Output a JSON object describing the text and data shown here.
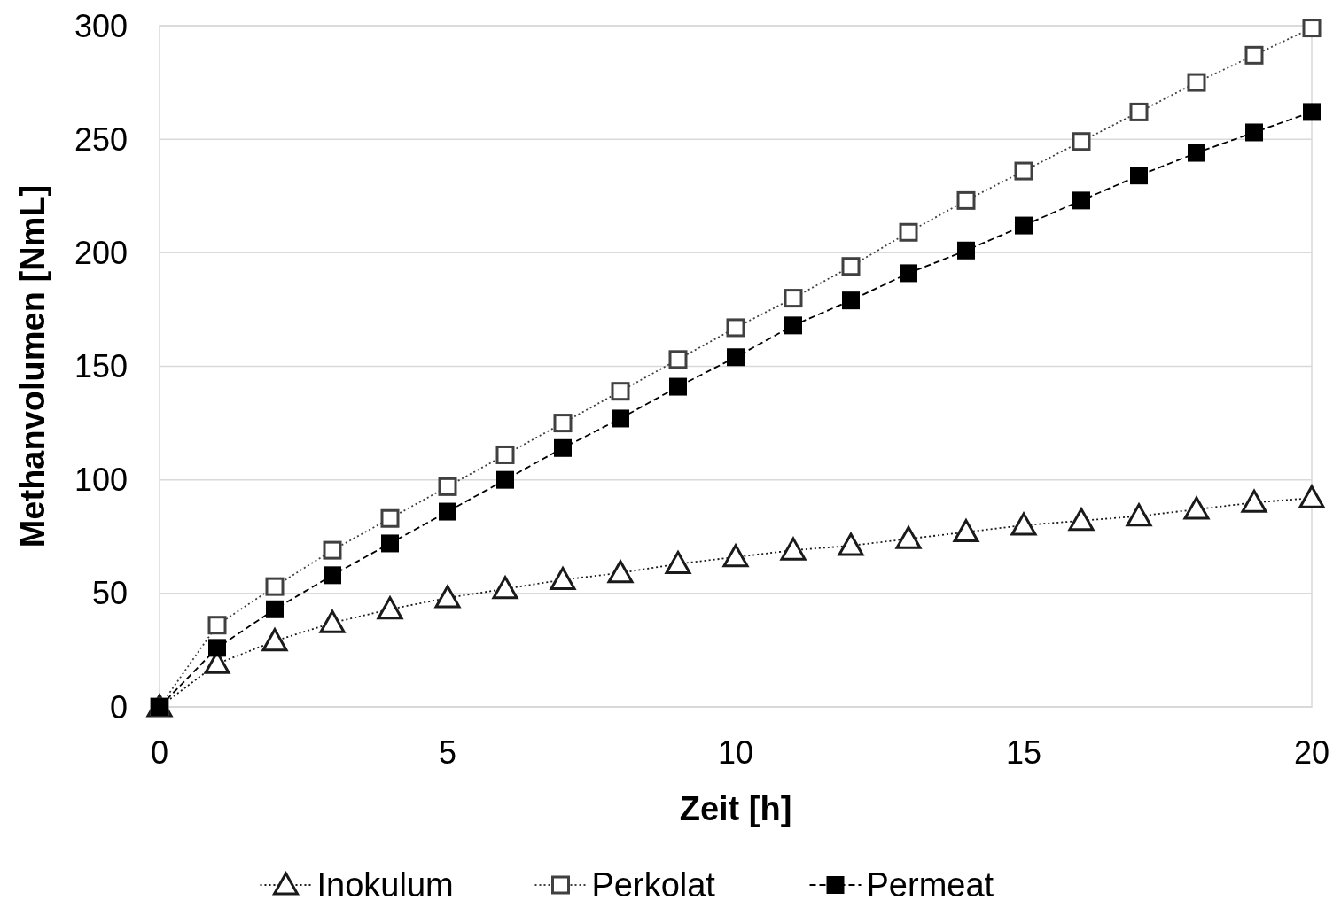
{
  "chart_data": {
    "type": "line",
    "xlabel": "Zeit [h]",
    "ylabel": "Methanvolumen [NmL]",
    "x": [
      0,
      1,
      2,
      3,
      4,
      5,
      6,
      7,
      8,
      9,
      10,
      11,
      12,
      13,
      14,
      15,
      16,
      17,
      18,
      19,
      20
    ],
    "xlim": [
      0,
      20
    ],
    "xticks": [
      0,
      5,
      10,
      15,
      20
    ],
    "ylim": [
      0,
      300
    ],
    "yticks": [
      0,
      50,
      100,
      150,
      200,
      250,
      300
    ],
    "grid": "y",
    "legend": "bottom",
    "series": [
      {
        "name": "Inokulum",
        "color": "#1a1a1a",
        "marker": "triangle",
        "line_style": "dotted",
        "values": [
          0,
          19,
          29,
          37,
          43,
          48,
          52,
          56,
          59,
          63,
          66,
          69,
          71,
          74,
          77,
          80,
          82,
          84,
          87,
          90,
          92
        ]
      },
      {
        "name": "Perkolat",
        "color": "#404040",
        "marker": "square",
        "line_style": "dotted",
        "values": [
          0,
          36,
          53,
          69,
          83,
          97,
          111,
          125,
          139,
          153,
          167,
          180,
          194,
          209,
          223,
          236,
          249,
          262,
          275,
          287,
          299
        ]
      },
      {
        "name": "Permeat",
        "color": "#000000",
        "marker": "square",
        "line_style": "dashed",
        "values": [
          0,
          26,
          43,
          58,
          72,
          86,
          100,
          114,
          127,
          141,
          154,
          168,
          179,
          191,
          201,
          212,
          223,
          234,
          244,
          253,
          262
        ]
      }
    ]
  }
}
